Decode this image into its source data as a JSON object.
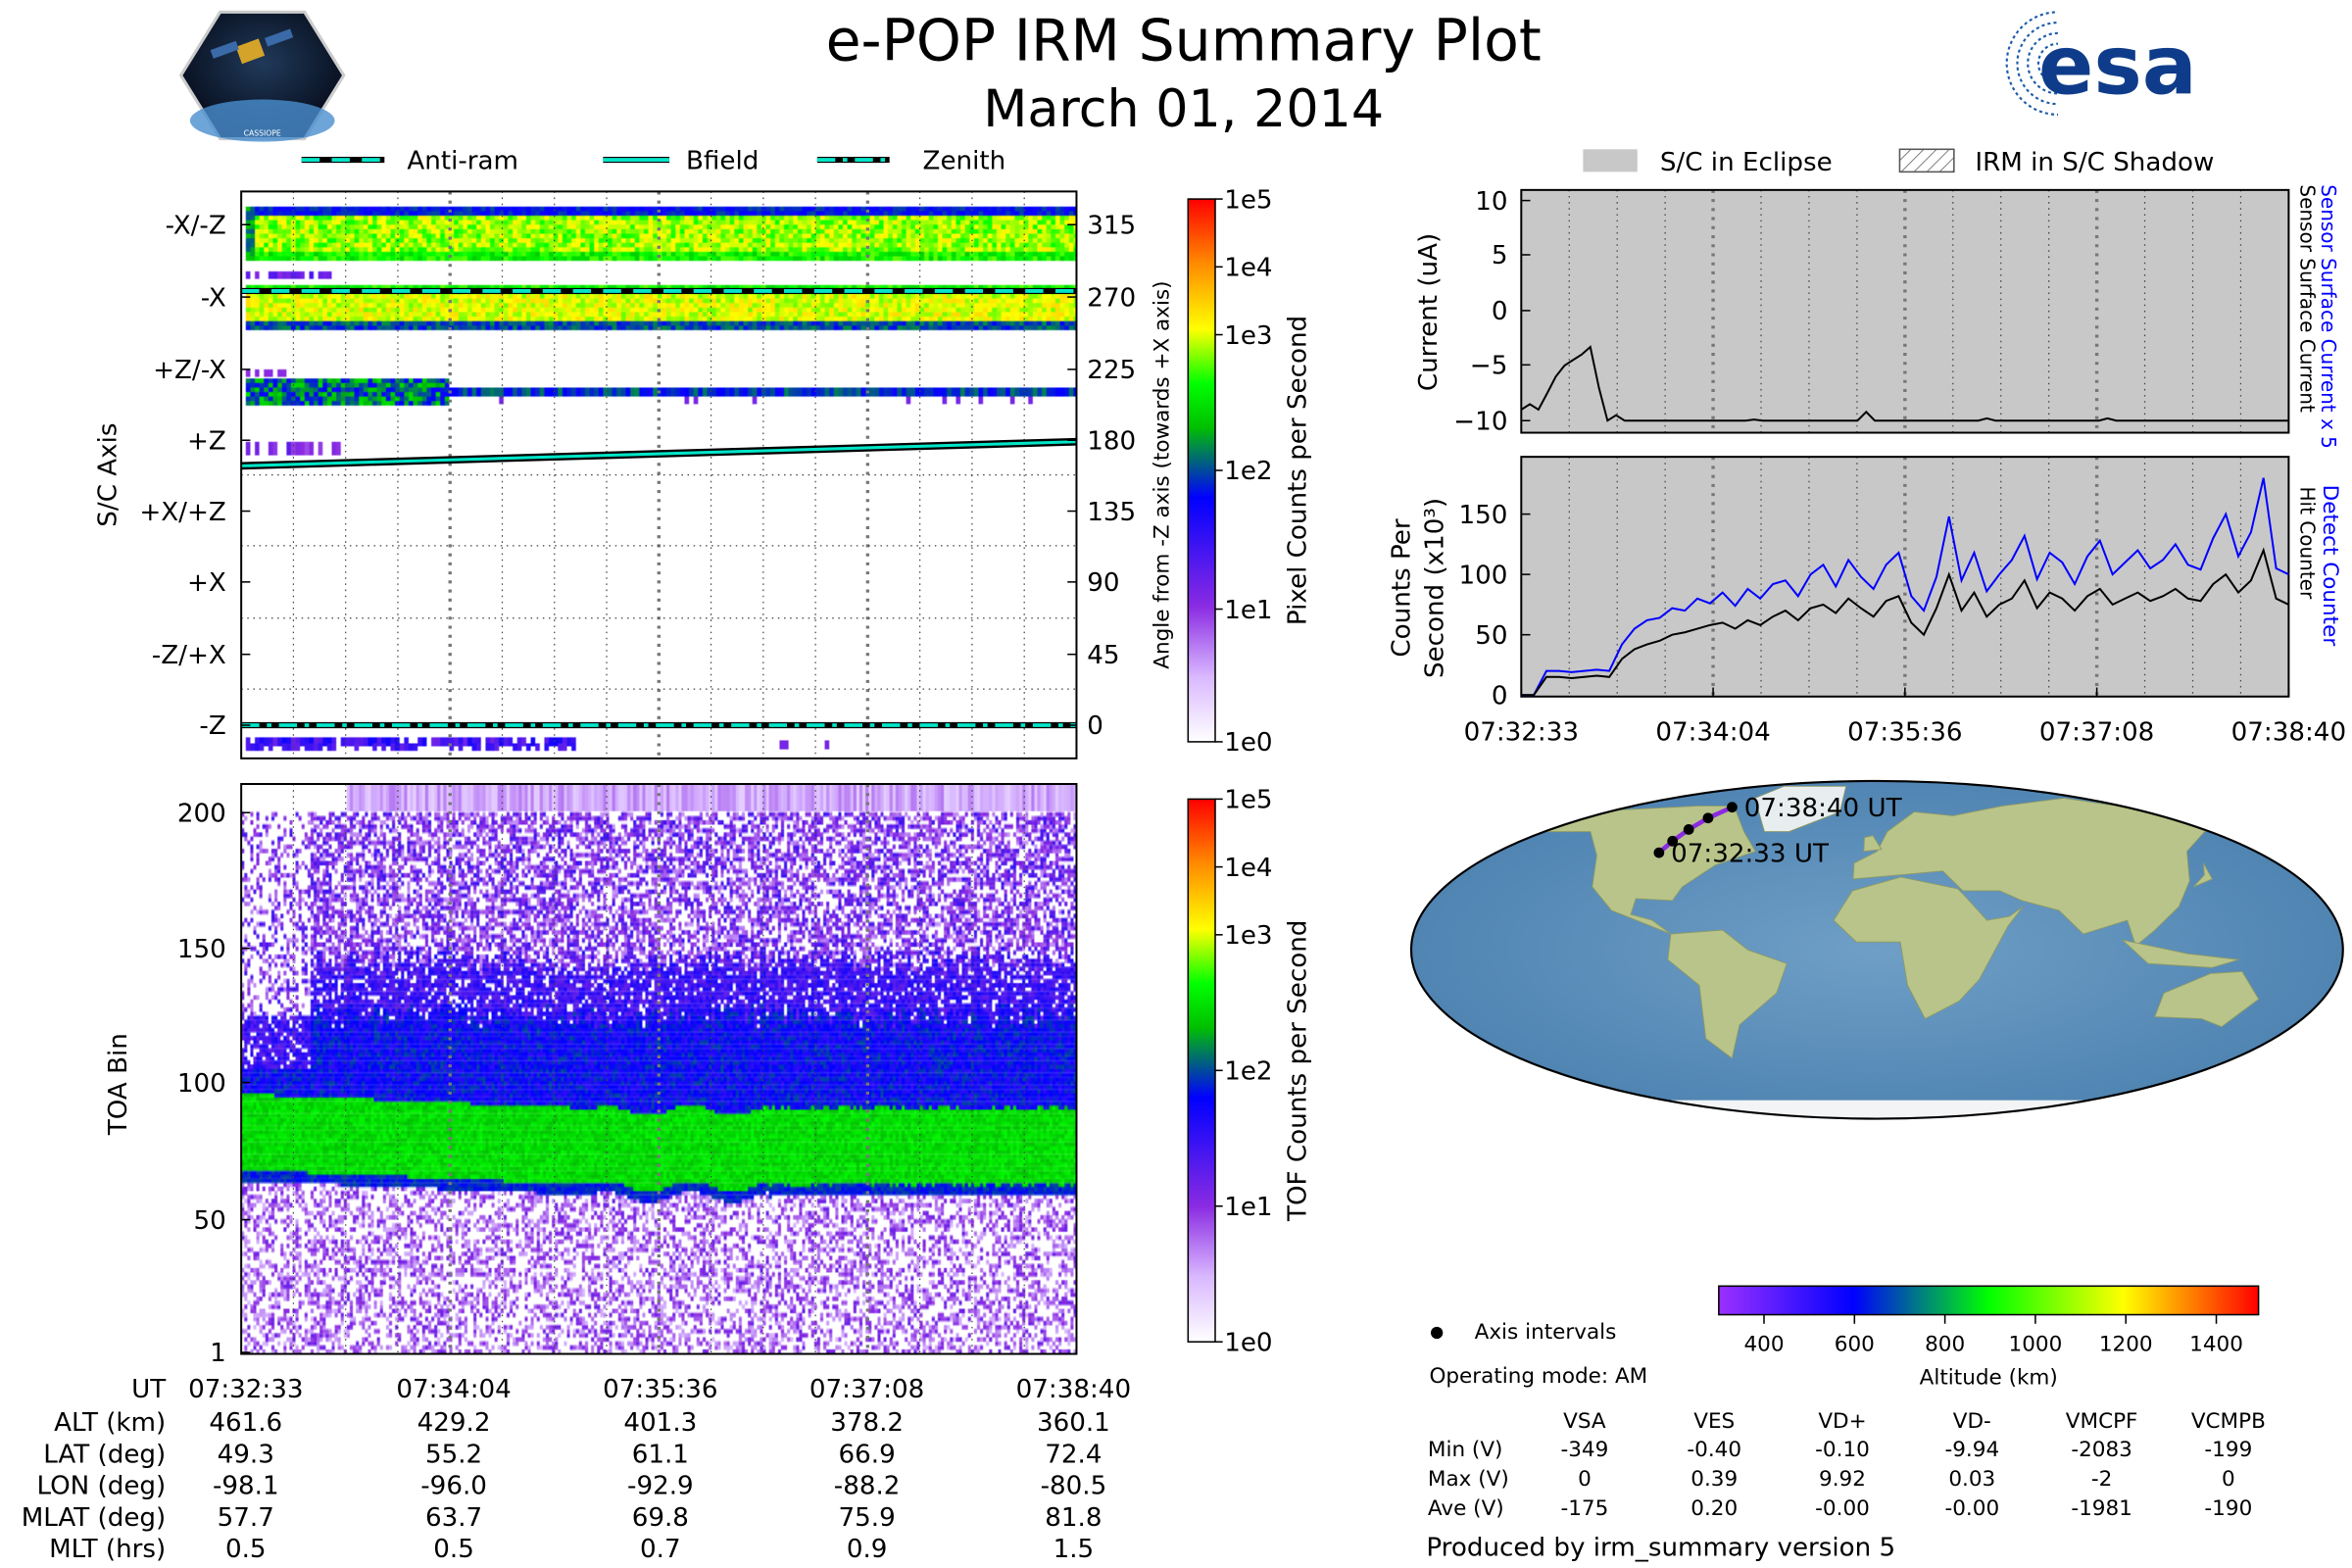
{
  "header": {
    "title": "e-POP IRM Summary Plot",
    "date": "March 01, 2014",
    "left_logo": "CASSIOPE",
    "right_logo": "esa"
  },
  "colors": {
    "eclipse": "#c8c8c8",
    "track": "#8a2be2",
    "cyan": "#00e5c8",
    "blue": "#0000ff"
  },
  "chart_data": [
    {
      "type": "heatmap",
      "id": "pixel",
      "ylabel": "S/C Axis",
      "y_tick_labels": [
        "-X/-Z",
        "-X",
        "+Z/-X",
        "+Z",
        "+X/+Z",
        "+X",
        "-Z/+X",
        "-Z"
      ],
      "y2label": "Angle from -Z axis (towards +X axis)",
      "y2_ticks": [
        "315",
        "270",
        "225",
        "180",
        "135",
        "90",
        "45",
        "0"
      ],
      "legend": [
        {
          "label": "Anti-ram",
          "style": "dashed"
        },
        {
          "label": "Bfield",
          "style": "solid"
        },
        {
          "label": "Zenith",
          "style": "dashdot"
        }
      ],
      "legend_placement": "top",
      "colorbar": {
        "label": "Pixel Counts per Second",
        "ticks": [
          "1e5",
          "1e4",
          "1e3",
          "1e2",
          "1e1",
          "1e0"
        ]
      }
    },
    {
      "type": "heatmap",
      "id": "tof",
      "ylabel": "TOA Bin",
      "yticks": [
        "200",
        "150",
        "100",
        "50",
        "1"
      ],
      "ylim": [
        1,
        210
      ],
      "colorbar": {
        "label": "TOF Counts per Second",
        "ticks": [
          "1e5",
          "1e4",
          "1e3",
          "1e2",
          "1e1",
          "1e0"
        ]
      }
    },
    {
      "type": "line",
      "id": "current",
      "ylabel": "Current (uA)",
      "yticks": [
        "10",
        "5",
        "0",
        "−5",
        "−10"
      ],
      "ylim": [
        -12,
        12
      ],
      "right_labels": [
        {
          "text": "Sensor Surface Current x 5",
          "color": "#0000ff"
        },
        {
          "text": "Sensor Surface Current",
          "color": "#000000"
        }
      ],
      "legend": [
        "S/C in Eclipse",
        "IRM in S/C Shadow"
      ],
      "x_duration_s": 367,
      "series": [
        {
          "name": "Sensor Surface Current",
          "color": "#000000",
          "values": [
            -9,
            -8.5,
            -9,
            -7.5,
            -6,
            -5,
            -4.5,
            -4,
            -3.3,
            -7,
            -10,
            -9.5,
            -10,
            -10,
            -10,
            -10,
            -10,
            -10,
            -10,
            -10,
            -10,
            -10,
            -10,
            -10,
            -10,
            -10,
            -10,
            -9.9,
            -10,
            -10,
            -10,
            -10,
            -10,
            -10,
            -10,
            -10,
            -10,
            -10,
            -10,
            -10,
            -9.2,
            -10,
            -10,
            -10,
            -10,
            -10,
            -10,
            -10,
            -10,
            -10,
            -10,
            -10,
            -10,
            -10,
            -9.8,
            -10,
            -10,
            -10,
            -10,
            -10,
            -10,
            -10,
            -10,
            -10,
            -10,
            -10,
            -10,
            -10,
            -9.8,
            -10,
            -10,
            -10,
            -10,
            -10,
            -10,
            -10,
            -10,
            -10,
            -10,
            -10,
            -10,
            -10,
            -10,
            -10,
            -10,
            -10,
            -10,
            -10,
            -10,
            -10
          ]
        }
      ]
    },
    {
      "type": "line",
      "id": "counts",
      "ylabel": "Counts Per Second (x10³)",
      "yticks": [
        "150",
        "100",
        "50",
        "0"
      ],
      "ylim": [
        0,
        197
      ],
      "xticks": [
        "07:32:33",
        "07:34:04",
        "07:35:36",
        "07:37:08",
        "07:38:40"
      ],
      "right_labels": [
        {
          "text": "Detect Counter",
          "color": "#0000ff"
        },
        {
          "text": "Hit Counter",
          "color": "#000000"
        }
      ],
      "x_duration_s": 367,
      "series": [
        {
          "name": "Detect Counter",
          "color": "#0000ff",
          "values": [
            0,
            0,
            20,
            20,
            19,
            20,
            21,
            20,
            42,
            55,
            62,
            64,
            72,
            70,
            80,
            76,
            85,
            74,
            88,
            80,
            92,
            95,
            82,
            100,
            108,
            90,
            112,
            98,
            88,
            108,
            118,
            82,
            70,
            98,
            148,
            95,
            118,
            86,
            100,
            112,
            132,
            96,
            118,
            110,
            92,
            115,
            128,
            100,
            110,
            120,
            105,
            112,
            125,
            108,
            104,
            130,
            150,
            115,
            135,
            180,
            105,
            100
          ]
        },
        {
          "name": "Hit Counter",
          "color": "#000000",
          "values": [
            0,
            0,
            15,
            15,
            14,
            15,
            16,
            15,
            30,
            38,
            42,
            45,
            50,
            52,
            55,
            58,
            60,
            55,
            62,
            58,
            65,
            70,
            62,
            72,
            75,
            68,
            80,
            72,
            65,
            78,
            82,
            60,
            50,
            72,
            100,
            70,
            85,
            65,
            75,
            80,
            95,
            72,
            85,
            80,
            70,
            82,
            88,
            75,
            80,
            85,
            78,
            82,
            88,
            80,
            78,
            92,
            100,
            85,
            95,
            120,
            80,
            75
          ]
        }
      ]
    },
    {
      "type": "scatter",
      "id": "map",
      "track_labels": [
        "07:32:33 UT",
        "07:38:40 UT"
      ],
      "points": [
        {
          "lat": 49.3,
          "lon": -98.1
        },
        {
          "lat": 55.2,
          "lon": -96.0
        },
        {
          "lat": 61.1,
          "lon": -92.9
        },
        {
          "lat": 66.9,
          "lon": -88.2
        },
        {
          "lat": 72.4,
          "lon": -80.5
        }
      ],
      "legend": "Axis intervals",
      "colorbar": {
        "label": "Altitude (km)",
        "ticks": [
          "400",
          "600",
          "800",
          "1000",
          "1200",
          "1400"
        ],
        "range": [
          300,
          1500
        ]
      }
    }
  ],
  "ephemeris": {
    "row_labels": [
      "UT",
      "ALT (km)",
      "LAT (deg)",
      "LON (deg)",
      "MLAT (deg)",
      "MLT (hrs)"
    ],
    "columns": [
      [
        "07:32:33",
        "461.6",
        "49.3",
        "-98.1",
        "57.7",
        "0.5"
      ],
      [
        "07:34:04",
        "429.2",
        "55.2",
        "-96.0",
        "63.7",
        "0.5"
      ],
      [
        "07:35:36",
        "401.3",
        "61.1",
        "-92.9",
        "69.8",
        "0.7"
      ],
      [
        "07:37:08",
        "378.2",
        "66.9",
        "-88.2",
        "75.9",
        "0.9"
      ],
      [
        "07:38:40",
        "360.1",
        "72.4",
        "-80.5",
        "81.8",
        "1.5"
      ]
    ]
  },
  "info": {
    "mode": "Operating mode: AM",
    "voltage_headers": [
      "VSA",
      "VES",
      "VD+",
      "VD-",
      "VMCPF",
      "VCMPB"
    ],
    "voltage_rows": [
      {
        "label": "Min (V)",
        "values": [
          "-349",
          "-0.40",
          "-0.10",
          "-9.94",
          "-2083",
          "-199"
        ]
      },
      {
        "label": "Max (V)",
        "values": [
          "0",
          "0.39",
          "9.92",
          "0.03",
          "-2",
          "0"
        ]
      },
      {
        "label": "Ave (V)",
        "values": [
          "-175",
          "0.20",
          "-0.00",
          "-0.00",
          "-1981",
          "-190"
        ]
      }
    ],
    "footer": "Produced by irm_summary version 5"
  }
}
